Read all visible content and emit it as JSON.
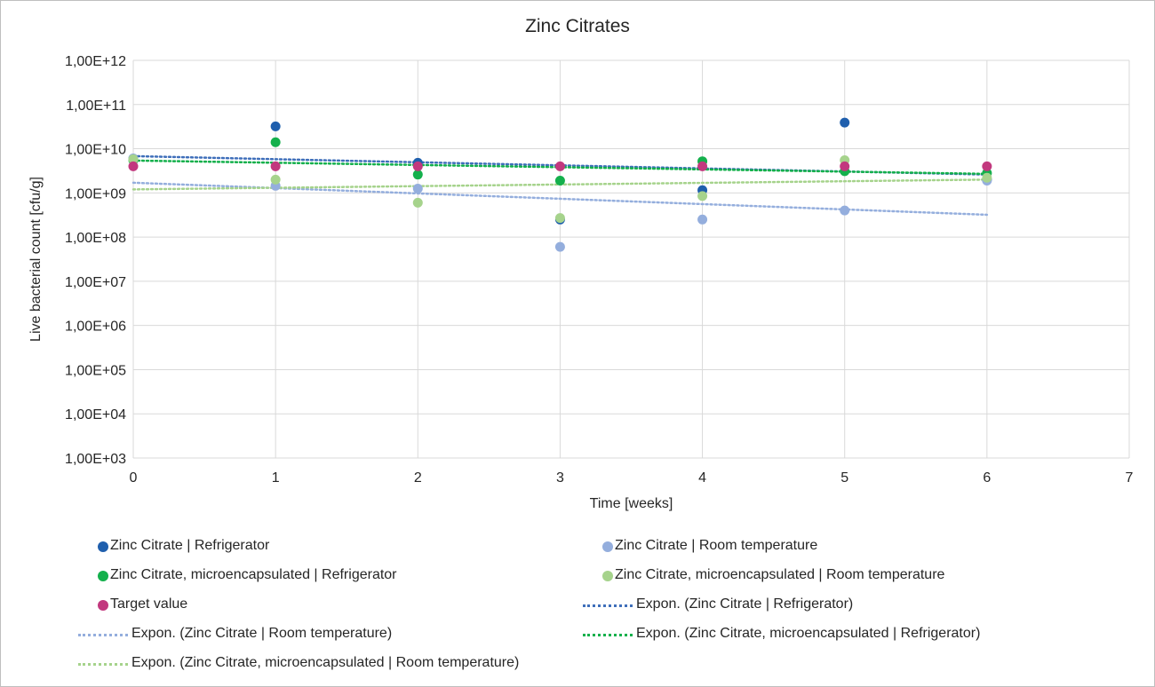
{
  "chart_data": {
    "type": "scatter",
    "title": "Zinc Citrates",
    "xlabel": "Time [weeks]",
    "ylabel": "Live bacterial count [cfu/g]",
    "xlim": [
      0,
      7
    ],
    "ylim": [
      1000,
      1000000000000
    ],
    "yscale": "log",
    "grid": true,
    "legend_position": "bottom",
    "x_ticks": [
      "0",
      "1",
      "2",
      "3",
      "4",
      "5",
      "6",
      "7"
    ],
    "y_ticks": [
      "1,00E+03",
      "1,00E+04",
      "1,00E+05",
      "1,00E+06",
      "1,00E+07",
      "1,00E+08",
      "1,00E+09",
      "1,00E+10",
      "1,00E+11",
      "1,00E+12"
    ],
    "series": [
      {
        "name": "Zinc Citrate | Refrigerator",
        "color": "#1f5fad",
        "x": [
          0,
          1,
          2,
          3,
          4,
          5,
          6
        ],
        "y": [
          6000000000,
          32000000000,
          4800000000,
          250000000,
          1150000000,
          39000000000,
          2000000000
        ]
      },
      {
        "name": "Zinc Citrate | Room temperature",
        "color": "#94aedd",
        "x": [
          0,
          1,
          2,
          3,
          4,
          5,
          6
        ],
        "y": [
          6000000000,
          1450000000,
          1250000000,
          60000000,
          250000000,
          400000000,
          1900000000
        ]
      },
      {
        "name": "Zinc Citrate, microencapsulated | Refrigerator",
        "color": "#14b04c",
        "x": [
          0,
          1,
          2,
          3,
          4,
          5,
          6
        ],
        "y": [
          5500000000,
          14000000000,
          2600000000,
          1900000000,
          5200000000,
          3100000000,
          2800000000
        ]
      },
      {
        "name": "Zinc Citrate, microencapsulated | Room temperature",
        "color": "#a6d38c",
        "x": [
          0,
          1,
          2,
          3,
          4,
          5,
          6
        ],
        "y": [
          5800000000,
          2000000000,
          600000000,
          270000000,
          850000000,
          5500000000,
          2200000000
        ]
      },
      {
        "name": "Target value",
        "color": "#c2387e",
        "x": [
          0,
          1,
          2,
          3,
          4,
          5,
          6
        ],
        "y": [
          4000000000,
          4000000000,
          4000000000,
          4000000000,
          4000000000,
          4000000000,
          4000000000
        ]
      }
    ],
    "trendlines": [
      {
        "name": "Expon. (Zinc Citrate | Refrigerator)",
        "color": "#3f6fba",
        "x": [
          0,
          6
        ],
        "y": [
          6800000000,
          2600000000
        ]
      },
      {
        "name": "Expon. (Zinc Citrate | Room temperature)",
        "color": "#94aedd",
        "x": [
          0,
          6
        ],
        "y": [
          1700000000,
          320000000
        ]
      },
      {
        "name": "Expon. (Zinc Citrate, microencapsulated | Refrigerator)",
        "color": "#14b04c",
        "x": [
          0,
          6
        ],
        "y": [
          5400000000,
          2700000000
        ]
      },
      {
        "name": "Expon. (Zinc Citrate, microencapsulated | Room temperature)",
        "color": "#a6d38c",
        "x": [
          0,
          6
        ],
        "y": [
          1200000000,
          2000000000
        ]
      }
    ],
    "legend": [
      {
        "label": "Zinc Citrate | Refrigerator",
        "kind": "marker",
        "color": "#1f5fad"
      },
      {
        "label": "Zinc Citrate | Room temperature",
        "kind": "marker",
        "color": "#94aedd"
      },
      {
        "label": "Zinc Citrate, microencapsulated | Refrigerator",
        "kind": "marker",
        "color": "#14b04c"
      },
      {
        "label": "Zinc Citrate, microencapsulated | Room temperature",
        "kind": "marker",
        "color": "#a6d38c"
      },
      {
        "label": "Target value",
        "kind": "marker",
        "color": "#c2387e"
      },
      {
        "label": "Expon. (Zinc Citrate | Refrigerator)",
        "kind": "line",
        "color": "#3f6fba"
      },
      {
        "label": "Expon. (Zinc Citrate | Room temperature)",
        "kind": "line",
        "color": "#94aedd"
      },
      {
        "label": "Expon. (Zinc Citrate, microencapsulated | Refrigerator)",
        "kind": "line",
        "color": "#14b04c"
      },
      {
        "label": "Expon. (Zinc Citrate, microencapsulated | Room temperature)",
        "kind": "line",
        "color": "#a6d38c"
      }
    ]
  }
}
